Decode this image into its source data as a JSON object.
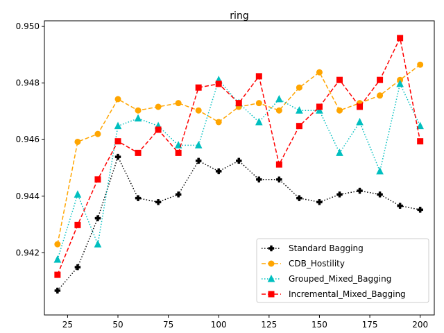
{
  "chart_data": {
    "type": "line",
    "title": "ring",
    "xlabel": "",
    "ylabel": "",
    "x": [
      20,
      30,
      40,
      50,
      60,
      70,
      80,
      90,
      100,
      110,
      120,
      130,
      140,
      150,
      160,
      170,
      180,
      190,
      200
    ],
    "xlim": [
      13.5,
      207
    ],
    "ylim": [
      0.9398,
      0.9502
    ],
    "xticks": [
      25,
      50,
      75,
      100,
      125,
      150,
      175,
      200
    ],
    "xtick_labels": [
      "25",
      "50",
      "75",
      "100",
      "125",
      "150",
      "175",
      "200"
    ],
    "yticks": [
      0.942,
      0.944,
      0.946,
      0.948,
      0.95
    ],
    "ytick_labels": [
      "0.942",
      "0.944",
      "0.946",
      "0.948",
      "0.950"
    ],
    "grid": false,
    "legend_position": "lower-right",
    "series": [
      {
        "name": "Standard Bagging",
        "color": "#000000",
        "linestyle": "dotted",
        "marker": "plus",
        "values": [
          0.94066,
          0.94149,
          0.94322,
          0.94539,
          0.94393,
          0.94379,
          0.94406,
          0.94525,
          0.94488,
          0.94525,
          0.94459,
          0.94459,
          0.94393,
          0.94379,
          0.94406,
          0.94419,
          0.94406,
          0.94366,
          0.94352
        ]
      },
      {
        "name": "CDB_Hostility",
        "color": "#ffa500",
        "linestyle": "dashed",
        "marker": "circle",
        "values": [
          0.9423,
          0.94592,
          0.9462,
          0.94743,
          0.94703,
          0.94716,
          0.94729,
          0.94703,
          0.94662,
          0.94716,
          0.94729,
          0.94703,
          0.94784,
          0.94838,
          0.94703,
          0.94729,
          0.94756,
          0.94811,
          0.94865
        ]
      },
      {
        "name": "Grouped_Mixed_Bagging",
        "color": "#00bfbf",
        "linestyle": "dotted",
        "marker": "triangle",
        "values": [
          0.94176,
          0.94406,
          0.9423,
          0.94648,
          0.94675,
          0.94648,
          0.9458,
          0.9458,
          0.94811,
          0.94729,
          0.94662,
          0.94743,
          0.94703,
          0.94703,
          0.94553,
          0.94662,
          0.94488,
          0.94797,
          0.94648
        ]
      },
      {
        "name": "Incremental_Mixed_Bagging",
        "color": "#ff0000",
        "linestyle": "dashed",
        "marker": "square",
        "values": [
          0.94122,
          0.94298,
          0.94459,
          0.94594,
          0.94553,
          0.94635,
          0.94553,
          0.94784,
          0.94797,
          0.94729,
          0.94824,
          0.94512,
          0.94648,
          0.94716,
          0.94811,
          0.94716,
          0.94811,
          0.94959,
          0.94594
        ]
      }
    ]
  }
}
